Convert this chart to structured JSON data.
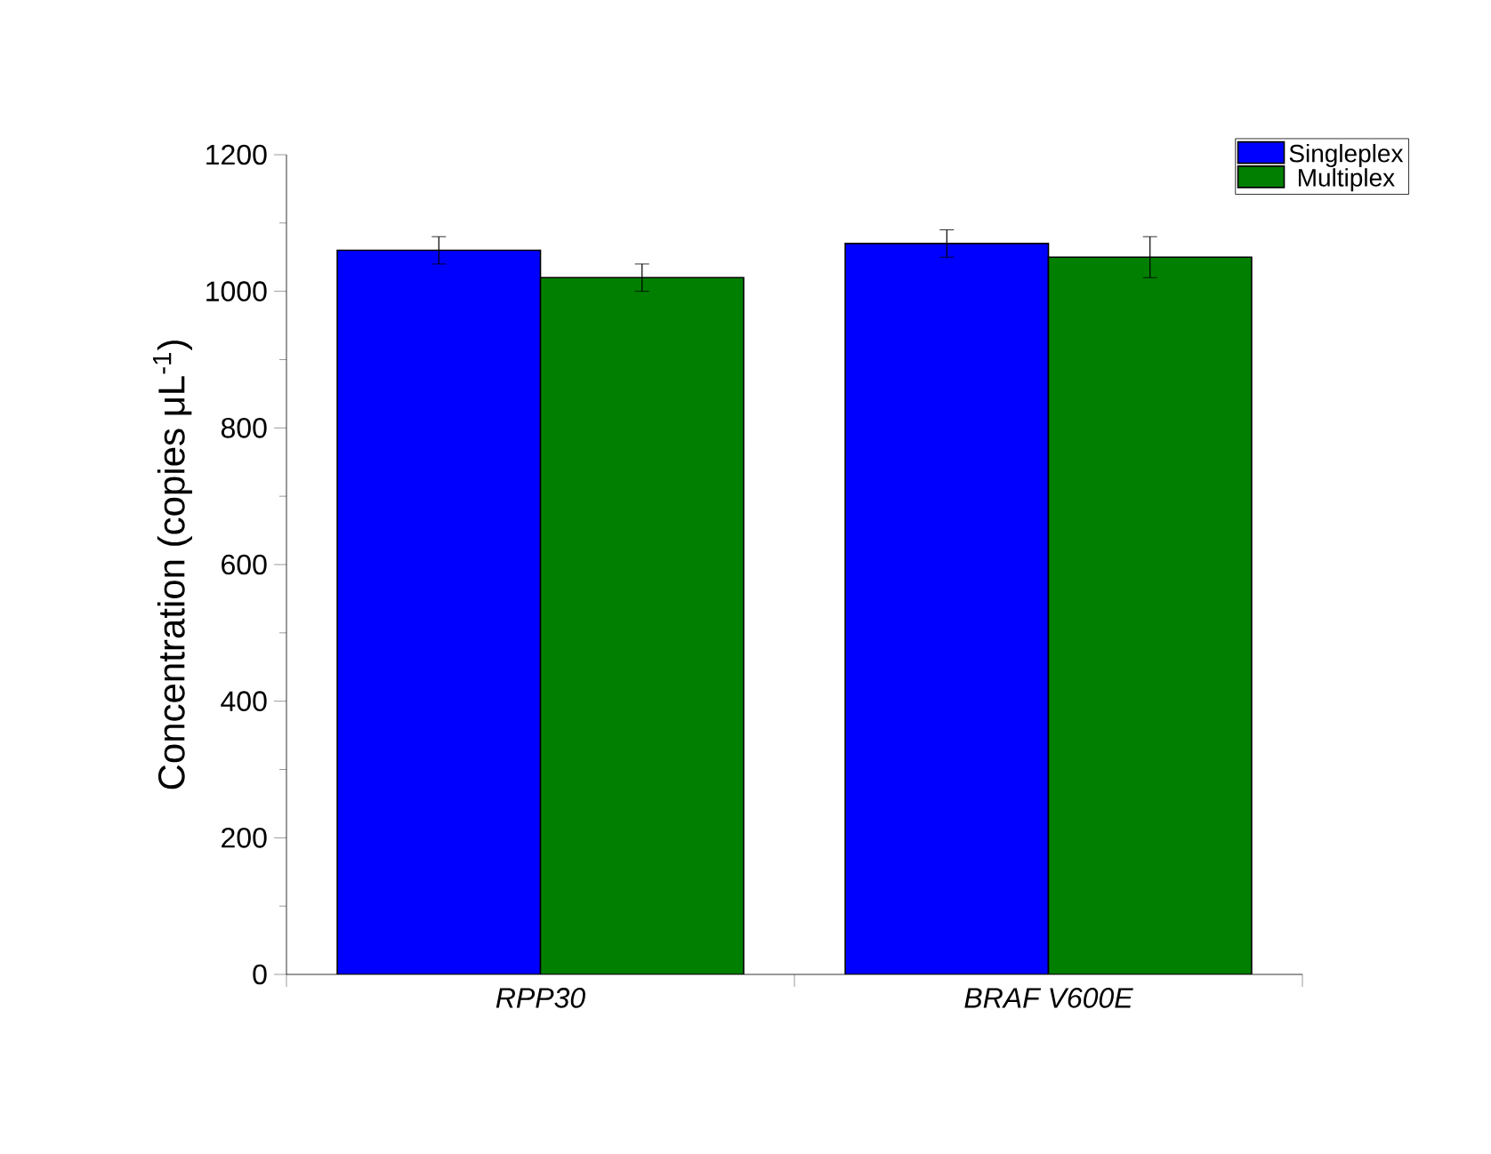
{
  "chart_data": {
    "type": "bar",
    "ylabel": "Concentration (copies μL$^{-1}$)",
    "categories": [
      "RPP30",
      "BRAF V600E"
    ],
    "series": [
      {
        "name": "Singleplex",
        "color": "#0000ff",
        "values": [
          1060,
          1070
        ],
        "errors": [
          20,
          20
        ]
      },
      {
        "name": "Multiplex",
        "color": "#007f00",
        "values": [
          1020,
          1050
        ],
        "errors": [
          20,
          30
        ]
      }
    ],
    "ylim": [
      0,
      1200
    ],
    "yticks": [
      0,
      200,
      400,
      600,
      800,
      1000,
      1200
    ],
    "grid": false,
    "legend": "top right"
  }
}
